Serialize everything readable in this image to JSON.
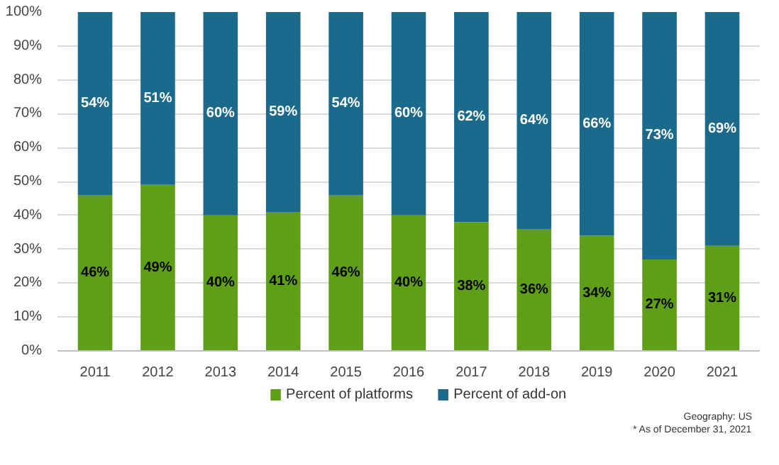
{
  "chart_data": {
    "type": "bar",
    "stacked": true,
    "categories": [
      "2011",
      "2012",
      "2013",
      "2014",
      "2015",
      "2016",
      "2017",
      "2018",
      "2019",
      "2020",
      "2021"
    ],
    "series": [
      {
        "name": "Percent of platforms",
        "color": "#5f9f17",
        "values": [
          46,
          49,
          40,
          41,
          46,
          40,
          38,
          36,
          34,
          27,
          31
        ],
        "value_labels": [
          "46%",
          "49%",
          "40%",
          "41%",
          "46%",
          "40%",
          "38%",
          "36%",
          "34%",
          "27%",
          "31%"
        ]
      },
      {
        "name": "Percent of add-on",
        "color": "#1b6a8c",
        "values": [
          54,
          51,
          60,
          59,
          54,
          60,
          62,
          64,
          66,
          73,
          69
        ],
        "value_labels": [
          "54%",
          "51%",
          "60%",
          "59%",
          "54%",
          "60%",
          "62%",
          "64%",
          "66%",
          "73%",
          "69%"
        ]
      }
    ],
    "ylim": [
      0,
      100
    ],
    "yticks": [
      {
        "value": 0,
        "label": "0%"
      },
      {
        "value": 10,
        "label": "10%"
      },
      {
        "value": 20,
        "label": "20%"
      },
      {
        "value": 30,
        "label": "30%"
      },
      {
        "value": 40,
        "label": "40%"
      },
      {
        "value": 50,
        "label": "50%"
      },
      {
        "value": 60,
        "label": "60%"
      },
      {
        "value": 70,
        "label": "70%"
      },
      {
        "value": 80,
        "label": "80%"
      },
      {
        "value": 90,
        "label": "90%"
      },
      {
        "value": 100,
        "label": "100%"
      }
    ],
    "grid": "y",
    "legend": "bottom",
    "annotations": [
      "Geography: US",
      "* As of December 31, 2021"
    ]
  }
}
